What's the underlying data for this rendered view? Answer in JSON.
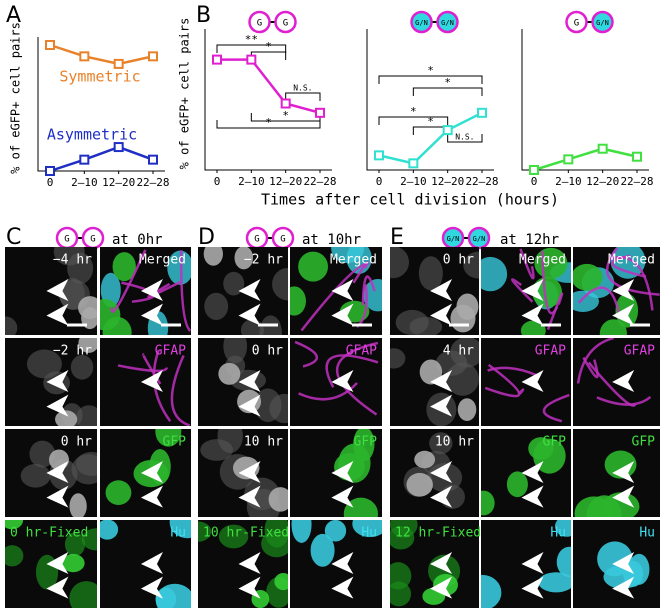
{
  "panel_labels": [
    "A",
    "B",
    "C",
    "D",
    "E"
  ],
  "x_label": "Times after cell division (hours)",
  "chart_data": [
    {
      "type": "line",
      "y_label": "% of eGFP+ cell pairs",
      "categories": [
        "0",
        "2–10",
        "12–20",
        "22–28"
      ],
      "ylim": [
        0,
        100
      ],
      "series": [
        {
          "name": "Symmetric",
          "color": "#e8822a",
          "values": [
            100,
            91,
            85,
            91
          ]
        },
        {
          "name": "Asymmetric",
          "color": "#1f2fc4",
          "values": [
            0,
            9,
            19,
            9
          ]
        }
      ]
    },
    {
      "type": "line",
      "icon": [
        "G",
        "G"
      ],
      "y_label": "% of eGFP+ cell pairs",
      "categories": [
        "0",
        "2–10",
        "12–20",
        "22–28"
      ],
      "ylim": [
        0,
        100
      ],
      "series": [
        {
          "color": "#e020d0",
          "values": [
            83,
            83,
            50,
            43
          ]
        }
      ],
      "annotations": [
        "**",
        "*",
        "N.S.",
        "*",
        "*"
      ]
    },
    {
      "type": "line",
      "icon": [
        "G/N",
        "G/N"
      ],
      "categories": [
        "0",
        "2–10",
        "12–20",
        "22–28"
      ],
      "ylim": [
        0,
        100
      ],
      "series": [
        {
          "color": "#30e0d0",
          "values": [
            11,
            5,
            30,
            43
          ]
        }
      ],
      "annotations": [
        "*",
        "*",
        "*",
        "*",
        "N.S."
      ]
    },
    {
      "type": "line",
      "icon": [
        "G",
        "G/N"
      ],
      "categories": [
        "0",
        "2–10",
        "12–20",
        "22–28"
      ],
      "ylim": [
        0,
        100
      ],
      "series": [
        {
          "color": "#40e040",
          "values": [
            0,
            8,
            16,
            10
          ]
        }
      ]
    }
  ],
  "image_panels": [
    {
      "icon": [
        "G",
        "G"
      ],
      "title": "at 0hr",
      "columns": [
        [
          "−4 hr",
          "−2 hr",
          "0 hr",
          "0 hr-Fixed"
        ],
        [
          "Merged",
          "GFAP",
          "GFP",
          "Hu"
        ]
      ]
    },
    {
      "icon": [
        "G",
        "G"
      ],
      "title": "at 10hr",
      "columns": [
        [
          "−2 hr",
          "0 hr",
          "10 hr",
          "10 hr-Fixed"
        ],
        [
          "Merged",
          "GFAP",
          "GFP",
          "Hu"
        ]
      ]
    },
    {
      "icon": [
        "G/N",
        "G/N"
      ],
      "title": "at 12hr",
      "columns": [
        [
          "0 hr",
          "4 hr",
          "10 hr",
          "12 hr-Fixed"
        ],
        [
          "Merged",
          "GFAP",
          "GFP",
          "Hu"
        ],
        [
          "Merged",
          "GFAP",
          "GFP",
          "Hu"
        ]
      ]
    }
  ]
}
